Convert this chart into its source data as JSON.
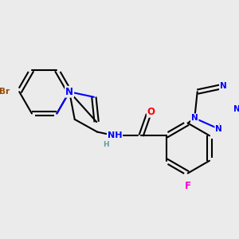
{
  "background_color": "#ebebeb",
  "bond_color": "#000000",
  "bond_width": 1.5,
  "atom_colors": {
    "Br": "#964B00",
    "N": "#0000FF",
    "O": "#FF0000",
    "F": "#FF00CC",
    "H": "#5F9EA0",
    "C": "#000000"
  },
  "font_size": 8.5,
  "fig_width": 3.0,
  "fig_height": 3.0,
  "dpi": 100
}
